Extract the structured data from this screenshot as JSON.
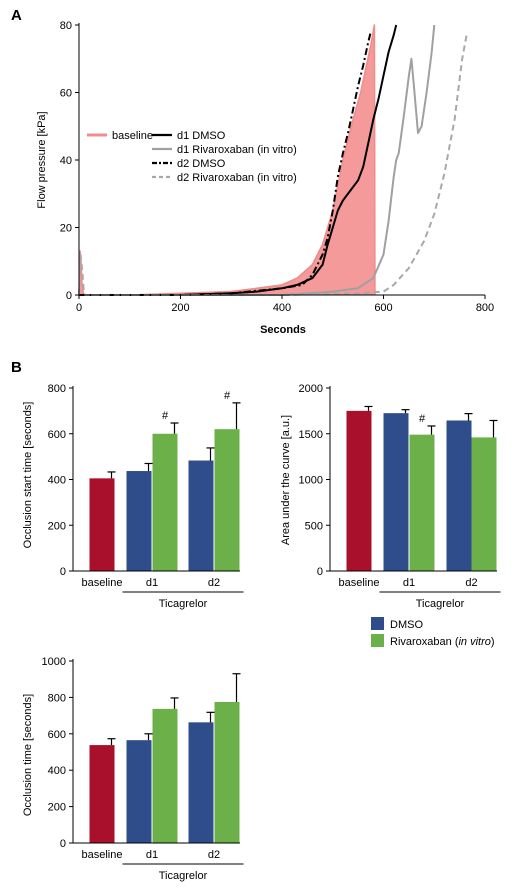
{
  "panels": {
    "a": "A",
    "b": "B"
  },
  "colors": {
    "baseline_trace": "#f08c8c",
    "baseline_fill": "#f49a9a",
    "d1_dmso": "#000000",
    "d1_riva": "#a0a0a0",
    "d2_dmso": "#000000",
    "d2_riva": "#a8a8a8",
    "bar_baseline": "#a8102c",
    "bar_dmso": "#2e4d8a",
    "bar_riva": "#6cb04a"
  },
  "chart_data": [
    {
      "type": "line",
      "panel": "A",
      "xlabel": "Seconds",
      "ylabel": "Flow pressure [kPa]",
      "xlim": [
        0,
        800
      ],
      "ylim": [
        0,
        80
      ],
      "xticks": [
        0,
        200,
        400,
        600,
        800
      ],
      "yticks": [
        0,
        20,
        40,
        60,
        80
      ],
      "legend_position": "left",
      "series": [
        {
          "name": "baseline",
          "style": "filled-area",
          "x": [
            0,
            2,
            4,
            6,
            8,
            10,
            100,
            200,
            300,
            350,
            400,
            430,
            460,
            480,
            500,
            520,
            540,
            555,
            565,
            575,
            582,
            583
          ],
          "y": [
            0,
            13,
            10,
            3,
            1,
            0,
            0,
            0.5,
            1,
            2,
            3,
            5,
            9,
            15,
            25,
            40,
            52,
            60,
            67,
            74,
            80,
            0
          ]
        },
        {
          "name": "d1 DMSO",
          "style": "solid",
          "x": [
            0,
            100,
            200,
            300,
            350,
            400,
            430,
            460,
            480,
            490,
            500,
            510,
            520,
            535,
            550,
            560,
            570,
            580,
            590,
            600,
            610,
            620,
            625
          ],
          "y": [
            0,
            0,
            0,
            0.5,
            1,
            2,
            3,
            5,
            9,
            15,
            20,
            25,
            28,
            31,
            34,
            38,
            45,
            52,
            58,
            65,
            72,
            77,
            80
          ]
        },
        {
          "name": "d1 Rivaroxaban (in vitro)",
          "style": "solid",
          "x": [
            0,
            200,
            400,
            500,
            550,
            580,
            600,
            610,
            620,
            625,
            630,
            640,
            650,
            655,
            660,
            668,
            675,
            685,
            695,
            700
          ],
          "y": [
            0,
            0,
            0,
            1,
            2,
            5,
            12,
            22,
            35,
            40,
            42,
            53,
            65,
            70,
            62,
            48,
            50,
            60,
            72,
            80
          ]
        },
        {
          "name": "d2 DMSO",
          "style": "dash-dot",
          "x": [
            0,
            100,
            200,
            300,
            400,
            440,
            460,
            480,
            490,
            500,
            510,
            520,
            530,
            540,
            550,
            560,
            570,
            575
          ],
          "y": [
            0,
            0,
            0,
            0.5,
            2,
            3,
            6,
            12,
            17,
            25,
            35,
            42,
            48,
            55,
            62,
            68,
            75,
            78
          ]
        },
        {
          "name": "d2 Rivaroxaban (in vitro)",
          "style": "dashed",
          "x": [
            0,
            3,
            6,
            9,
            12,
            200,
            400,
            550,
            600,
            620,
            650,
            680,
            700,
            720,
            740,
            755,
            765
          ],
          "y": [
            0,
            12,
            8,
            2,
            0,
            0,
            0,
            0.5,
            1,
            3,
            8,
            16,
            24,
            36,
            52,
            70,
            78
          ]
        }
      ]
    },
    {
      "type": "bar",
      "panel": "B",
      "ylabel": "Occlusion start time [seconds]",
      "ylim": [
        0,
        800
      ],
      "yticks": [
        0,
        200,
        400,
        600,
        800
      ],
      "categories": [
        "baseline",
        "d1",
        "d2"
      ],
      "group_label": "Ticagrelor",
      "bars": [
        {
          "category": "baseline",
          "series": "baseline",
          "value": 405,
          "error": 28
        },
        {
          "category": "d1",
          "series": "DMSO",
          "value": 437,
          "error": 33
        },
        {
          "category": "d1",
          "series": "Rivaroxaban (in vitro)",
          "value": 600,
          "error": 47,
          "annotation": "#"
        },
        {
          "category": "d2",
          "series": "DMSO",
          "value": 483,
          "error": 55
        },
        {
          "category": "d2",
          "series": "Rivaroxaban (in vitro)",
          "value": 620,
          "error": 115,
          "annotation": "#"
        }
      ]
    },
    {
      "type": "bar",
      "panel": "B",
      "ylabel": "Area under the curve [a.u.]",
      "ylim": [
        0,
        2000
      ],
      "yticks": [
        0,
        500,
        1000,
        1500,
        2000
      ],
      "categories": [
        "baseline",
        "d1",
        "d2"
      ],
      "group_label": "Ticagrelor",
      "bars": [
        {
          "category": "baseline",
          "series": "baseline",
          "value": 1750,
          "error": 48
        },
        {
          "category": "d1",
          "series": "DMSO",
          "value": 1725,
          "error": 38
        },
        {
          "category": "d1",
          "series": "Rivaroxaban (in vitro)",
          "value": 1490,
          "error": 95,
          "annotation": "#"
        },
        {
          "category": "d2",
          "series": "DMSO",
          "value": 1645,
          "error": 75
        },
        {
          "category": "d2",
          "series": "Rivaroxaban (in vitro)",
          "value": 1460,
          "error": 185
        }
      ]
    },
    {
      "type": "bar",
      "panel": "B",
      "ylabel": "Occlusion time [seconds]",
      "ylim": [
        0,
        1000
      ],
      "yticks": [
        0,
        200,
        400,
        600,
        800,
        1000
      ],
      "categories": [
        "baseline",
        "d1",
        "d2"
      ],
      "group_label": "Ticagrelor",
      "bars": [
        {
          "category": "baseline",
          "series": "baseline",
          "value": 538,
          "error": 35
        },
        {
          "category": "d1",
          "series": "DMSO",
          "value": 565,
          "error": 35
        },
        {
          "category": "d1",
          "series": "Rivaroxaban (in vitro)",
          "value": 737,
          "error": 60
        },
        {
          "category": "d2",
          "series": "DMSO",
          "value": 663,
          "error": 55
        },
        {
          "category": "d2",
          "series": "Rivaroxaban (in vitro)",
          "value": 775,
          "error": 155
        }
      ]
    }
  ],
  "bar_legend": [
    {
      "key": "DMSO",
      "label": "DMSO",
      "italic": ""
    },
    {
      "key": "Rivaroxaban (in vitro)",
      "label": "Rivaroxaban (",
      "italic": "in vitro",
      "tail": ")"
    }
  ]
}
